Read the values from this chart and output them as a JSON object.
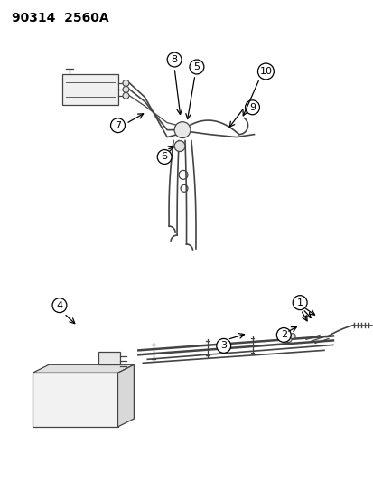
{
  "title": "90314  2560A",
  "bg_color": "#ffffff",
  "line_color": "#444444",
  "label_color": "#000000",
  "title_fontsize": 10,
  "label_fontsize": 8,
  "figsize": [
    4.14,
    5.33
  ],
  "dpi": 100
}
